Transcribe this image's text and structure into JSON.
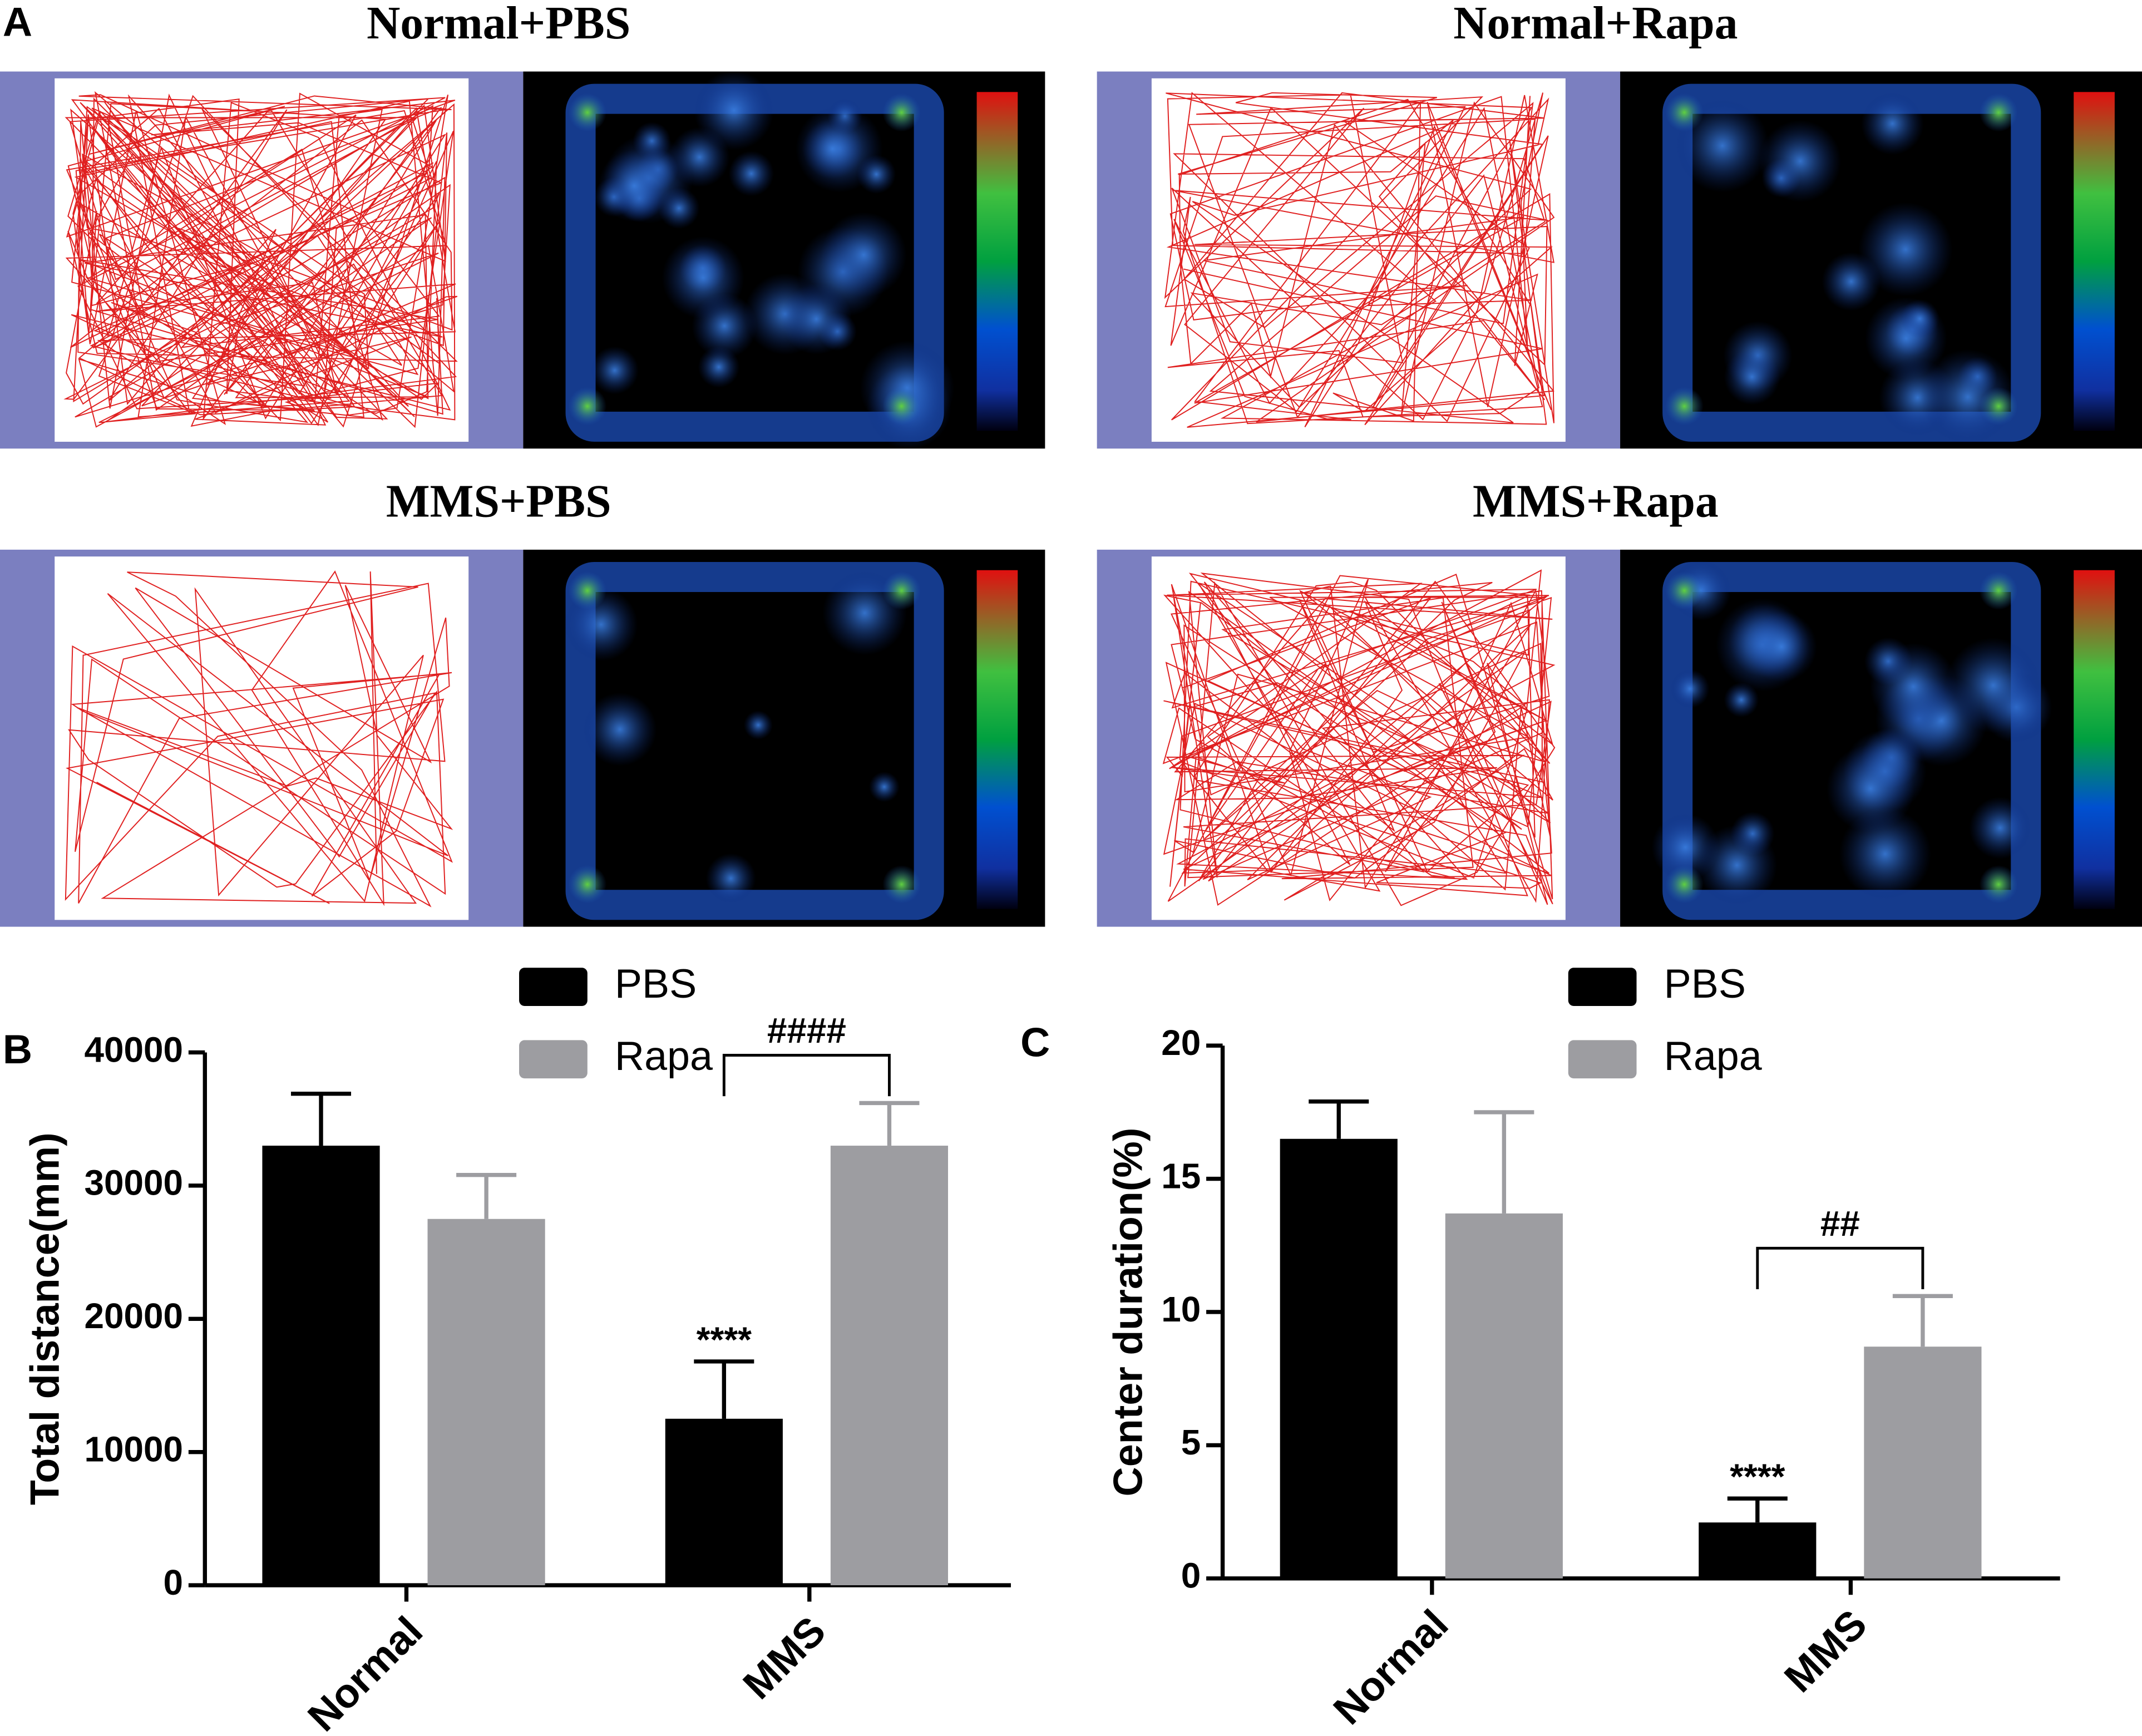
{
  "panel_a": {
    "label": "A",
    "titles": [
      "Normal+PBS",
      "Normal+Rapa",
      "MMS+PBS",
      "MMS+Rapa"
    ]
  },
  "chart_data": [
    {
      "type": "bar",
      "panel_label": "B",
      "y_label": "Total distance(mm)",
      "categories": [
        "Normal",
        "MMS"
      ],
      "series": [
        {
          "name": "PBS",
          "color": "#000000",
          "values": [
            33000,
            12500
          ],
          "errors": [
            3900,
            4300
          ]
        },
        {
          "name": "Rapa",
          "color": "#9d9da1",
          "values": [
            27500,
            33000
          ],
          "errors": [
            3300,
            3200
          ]
        }
      ],
      "ylim": [
        0,
        40000
      ],
      "yticks": [
        0,
        10000,
        20000,
        30000,
        40000
      ],
      "annotations": {
        "stars": "****",
        "hash": "####"
      }
    },
    {
      "type": "bar",
      "panel_label": "C",
      "y_label": "Center duration(%)",
      "categories": [
        "Normal",
        "MMS"
      ],
      "series": [
        {
          "name": "PBS",
          "color": "#000000",
          "values": [
            16.5,
            2.1
          ],
          "errors": [
            1.4,
            0.9
          ]
        },
        {
          "name": "Rapa",
          "color": "#9d9da1",
          "values": [
            13.7,
            8.7
          ],
          "errors": [
            3.8,
            1.9
          ]
        }
      ],
      "ylim": [
        0,
        20
      ],
      "yticks": [
        0,
        5,
        10,
        15,
        20
      ],
      "annotations": {
        "stars": "****",
        "hash": "##"
      }
    }
  ]
}
